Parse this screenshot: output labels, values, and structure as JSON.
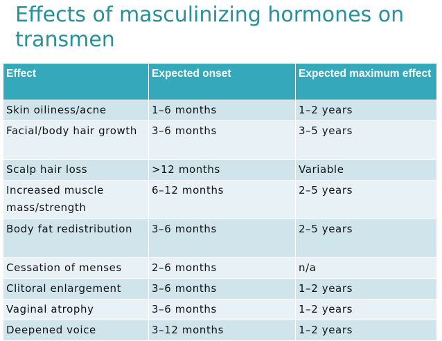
{
  "title": "Effects of masculinizing hormones on transmen",
  "table": {
    "headers": [
      "Effect",
      "Expected onset",
      "Expected maximum effect"
    ],
    "rows": [
      [
        "Skin oiliness/acne",
        "1–6 months",
        "1–2 years"
      ],
      [
        "Facial/body hair growth",
        "3–6 months",
        "3–5 years"
      ],
      [
        "Scalp hair loss",
        ">12 months",
        "Variable"
      ],
      [
        "Increased muscle mass/strength",
        "6–12 months",
        "2–5 years"
      ],
      [
        "Body fat redistribution",
        "3–6 months",
        "2–5 years"
      ],
      [
        "Cessation of menses",
        "2–6 months",
        "n/a"
      ],
      [
        "Clitoral enlargement",
        "3–6 months",
        "1–2 years"
      ],
      [
        "Vaginal atrophy",
        "3–6 months",
        "1–2 years"
      ],
      [
        "Deepened voice",
        "3–12 months",
        "1–2 years"
      ]
    ]
  },
  "colors": {
    "title": "#27919a",
    "header_bg": "#35a9bb",
    "row_odd": "#cfe4eb",
    "row_even": "#e8f2f6"
  }
}
